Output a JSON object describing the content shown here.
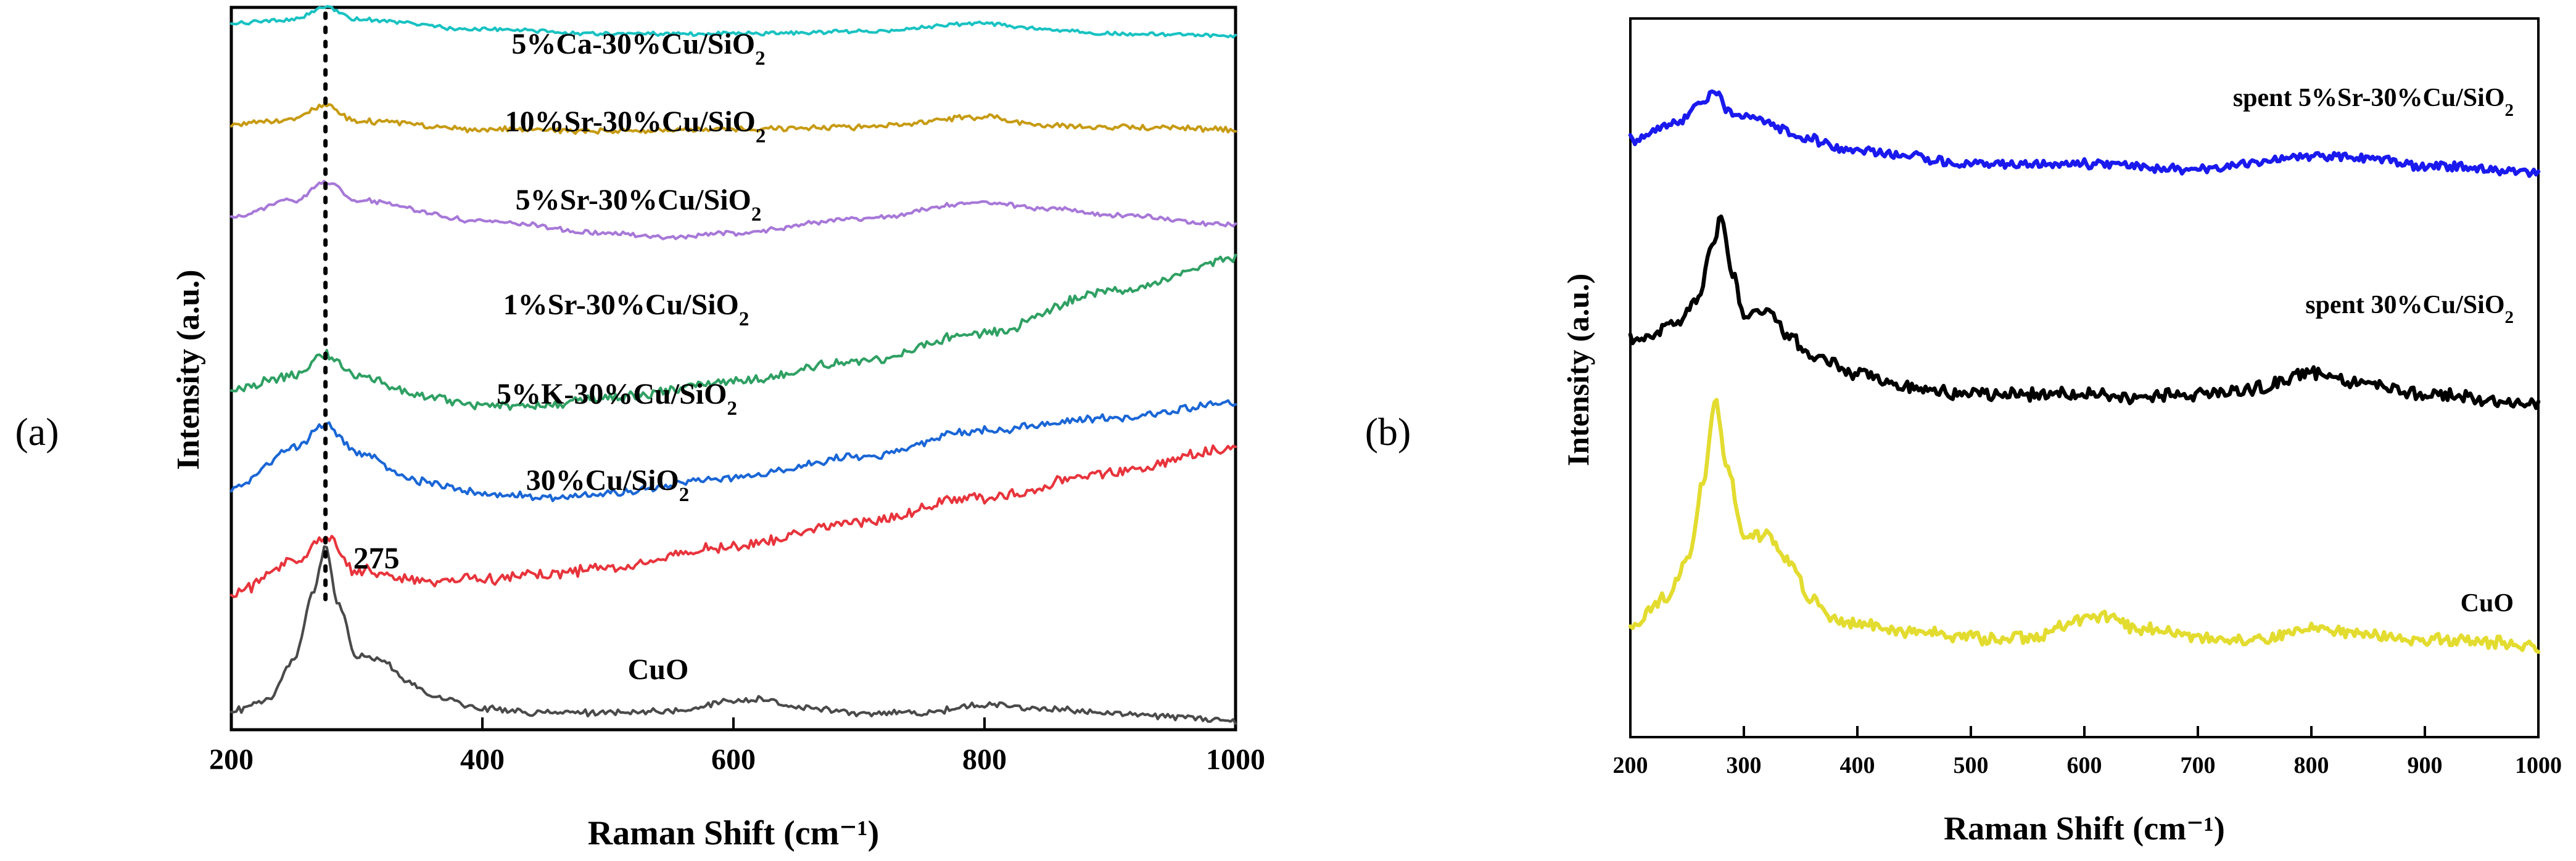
{
  "panels": {
    "a": {
      "label": "(a)"
    },
    "b": {
      "label": "(b)"
    }
  },
  "chart_data": [
    {
      "type": "line",
      "panel": "a",
      "xlabel": "Raman Shift (cm⁻¹)",
      "ylabel": "Intensity (a.u.)",
      "xlim": [
        200,
        1000
      ],
      "xticks": [
        200,
        400,
        600,
        800,
        1000
      ],
      "xtick_labels": [
        "200",
        "400",
        "600",
        "800",
        "1000"
      ],
      "peak_marker": {
        "x": 275,
        "label": "275",
        "style": "dotted vertical line"
      },
      "series": [
        {
          "name": "5%Ca-30%Cu/SiO₂",
          "color": "#19c2c2",
          "offset": 3.35,
          "x": [
            200,
            250,
            275,
            300,
            400,
            500,
            600,
            700,
            800,
            850,
            900,
            1000
          ],
          "y": [
            0.08,
            0.1,
            0.16,
            0.1,
            0.05,
            0.03,
            0.03,
            0.04,
            0.08,
            0.05,
            0.03,
            0.02
          ]
        },
        {
          "name": "10%Sr-30%Cu/SiO₂",
          "color": "#c79b12",
          "offset": 2.85,
          "x": [
            200,
            250,
            275,
            300,
            400,
            500,
            600,
            700,
            800,
            850,
            900,
            1000
          ],
          "y": [
            0.08,
            0.11,
            0.18,
            0.1,
            0.06,
            0.05,
            0.06,
            0.07,
            0.12,
            0.08,
            0.07,
            0.06
          ]
        },
        {
          "name": "5%Sr-30%Cu/SiO₂",
          "color": "#a778d8",
          "offset": 2.4,
          "x": [
            200,
            250,
            275,
            300,
            400,
            500,
            550,
            600,
            700,
            800,
            850,
            900,
            1000
          ],
          "y": [
            0.08,
            0.16,
            0.25,
            0.16,
            0.06,
            0.0,
            -0.02,
            0.0,
            0.07,
            0.15,
            0.12,
            0.09,
            0.04
          ]
        },
        {
          "name": "1%Sr-30%Cu/SiO₂",
          "color": "#2fa063",
          "offset": 1.55,
          "x": [
            200,
            250,
            275,
            300,
            350,
            400,
            450,
            500,
            600,
            700,
            800,
            900,
            1000
          ],
          "y": [
            0.08,
            0.15,
            0.25,
            0.15,
            0.05,
            0.0,
            0.0,
            0.04,
            0.12,
            0.22,
            0.36,
            0.56,
            0.72
          ]
        },
        {
          "name": "5%K-30%Cu/SiO₂",
          "color": "#1a66d6",
          "offset": 1.1,
          "x": [
            200,
            250,
            275,
            300,
            350,
            400,
            450,
            500,
            600,
            700,
            800,
            900,
            1000
          ],
          "y": [
            0.04,
            0.24,
            0.36,
            0.22,
            0.08,
            0.02,
            0.0,
            0.02,
            0.1,
            0.2,
            0.33,
            0.39,
            0.46
          ]
        },
        {
          "name": "30%Cu/SiO₂",
          "color": "#e8343c",
          "offset": 0.62,
          "x": [
            200,
            250,
            275,
            300,
            350,
            400,
            450,
            500,
            600,
            700,
            800,
            900,
            1000
          ],
          "y": [
            0.0,
            0.16,
            0.28,
            0.12,
            0.07,
            0.08,
            0.1,
            0.14,
            0.24,
            0.36,
            0.48,
            0.6,
            0.72
          ]
        },
        {
          "name": "CuO",
          "color": "#4a4a4a",
          "offset": 0.0,
          "x": [
            200,
            230,
            250,
            265,
            275,
            285,
            300,
            320,
            340,
            360,
            400,
            450,
            500,
            550,
            600,
            620,
            650,
            700,
            750,
            800,
            850,
            900,
            950,
            1000
          ],
          "y": [
            0.05,
            0.1,
            0.3,
            0.62,
            0.86,
            0.58,
            0.32,
            0.3,
            0.2,
            0.12,
            0.06,
            0.04,
            0.04,
            0.05,
            0.1,
            0.11,
            0.07,
            0.04,
            0.04,
            0.08,
            0.06,
            0.04,
            0.02,
            0.0
          ]
        }
      ],
      "labels": [
        {
          "text": "5%Ca-30%Cu/SiO₂",
          "series": "5%Ca-30%Cu/SiO₂"
        },
        {
          "text": "10%Sr-30%Cu/SiO₂",
          "series": "10%Sr-30%Cu/SiO₂"
        },
        {
          "text": "5%Sr-30%Cu/SiO₂",
          "series": "5%Sr-30%Cu/SiO₂"
        },
        {
          "text": "1%Sr-30%Cu/SiO₂",
          "series": "1%Sr-30%Cu/SiO₂"
        },
        {
          "text": "5%K-30%Cu/SiO₂",
          "series": "5%K-30%Cu/SiO₂"
        },
        {
          "text": "30%Cu/SiO₂",
          "series": "30%Cu/SiO₂"
        },
        {
          "text": "CuO",
          "series": "CuO"
        }
      ]
    },
    {
      "type": "line",
      "panel": "b",
      "xlabel": "Raman Shift (cm⁻¹)",
      "ylabel": "Intensity (a.u.)",
      "xlim": [
        200,
        1000
      ],
      "xticks": [
        200,
        300,
        400,
        500,
        600,
        700,
        800,
        900,
        1000
      ],
      "xtick_labels": [
        "200",
        "300",
        "400",
        "500",
        "600",
        "700",
        "800",
        "900",
        "1000"
      ],
      "series": [
        {
          "name": "spent 5%Sr-30%Cu/SiO₂",
          "color": "#1a1aee",
          "offset": 1.85,
          "x": [
            200,
            240,
            260,
            275,
            290,
            320,
            350,
            400,
            500,
            600,
            700,
            800,
            850,
            900,
            1000
          ],
          "y": [
            0.12,
            0.18,
            0.26,
            0.3,
            0.22,
            0.19,
            0.13,
            0.08,
            0.03,
            0.03,
            0.01,
            0.06,
            0.05,
            0.02,
            0.0
          ]
        },
        {
          "name": "spent 30%Cu/SiO₂",
          "color": "#000000",
          "offset": 0.95,
          "x": [
            200,
            240,
            260,
            270,
            280,
            290,
            300,
            320,
            340,
            360,
            400,
            450,
            500,
            600,
            650,
            700,
            750,
            800,
            850,
            900,
            1000
          ],
          "y": [
            0.25,
            0.3,
            0.4,
            0.58,
            0.72,
            0.5,
            0.34,
            0.36,
            0.27,
            0.18,
            0.12,
            0.06,
            0.04,
            0.04,
            0.03,
            0.04,
            0.06,
            0.12,
            0.08,
            0.04,
            0.0
          ]
        },
        {
          "name": "CuO",
          "color": "#e3dc30",
          "offset": 0.0,
          "x": [
            200,
            230,
            250,
            265,
            275,
            285,
            300,
            320,
            340,
            360,
            380,
            400,
            450,
            500,
            550,
            600,
            620,
            650,
            700,
            750,
            800,
            850,
            900,
            950,
            1000
          ],
          "y": [
            0.08,
            0.2,
            0.34,
            0.66,
            0.96,
            0.72,
            0.44,
            0.45,
            0.34,
            0.2,
            0.12,
            0.1,
            0.07,
            0.05,
            0.05,
            0.12,
            0.13,
            0.08,
            0.05,
            0.04,
            0.09,
            0.06,
            0.04,
            0.03,
            0.01
          ]
        }
      ],
      "labels": [
        {
          "text": "spent 5%Sr-30%Cu/SiO₂",
          "series": "spent 5%Sr-30%Cu/SiO₂"
        },
        {
          "text": "spent 30%Cu/SiO₂",
          "series": "spent 30%Cu/SiO₂"
        },
        {
          "text": "CuO",
          "series": "CuO"
        }
      ]
    }
  ]
}
